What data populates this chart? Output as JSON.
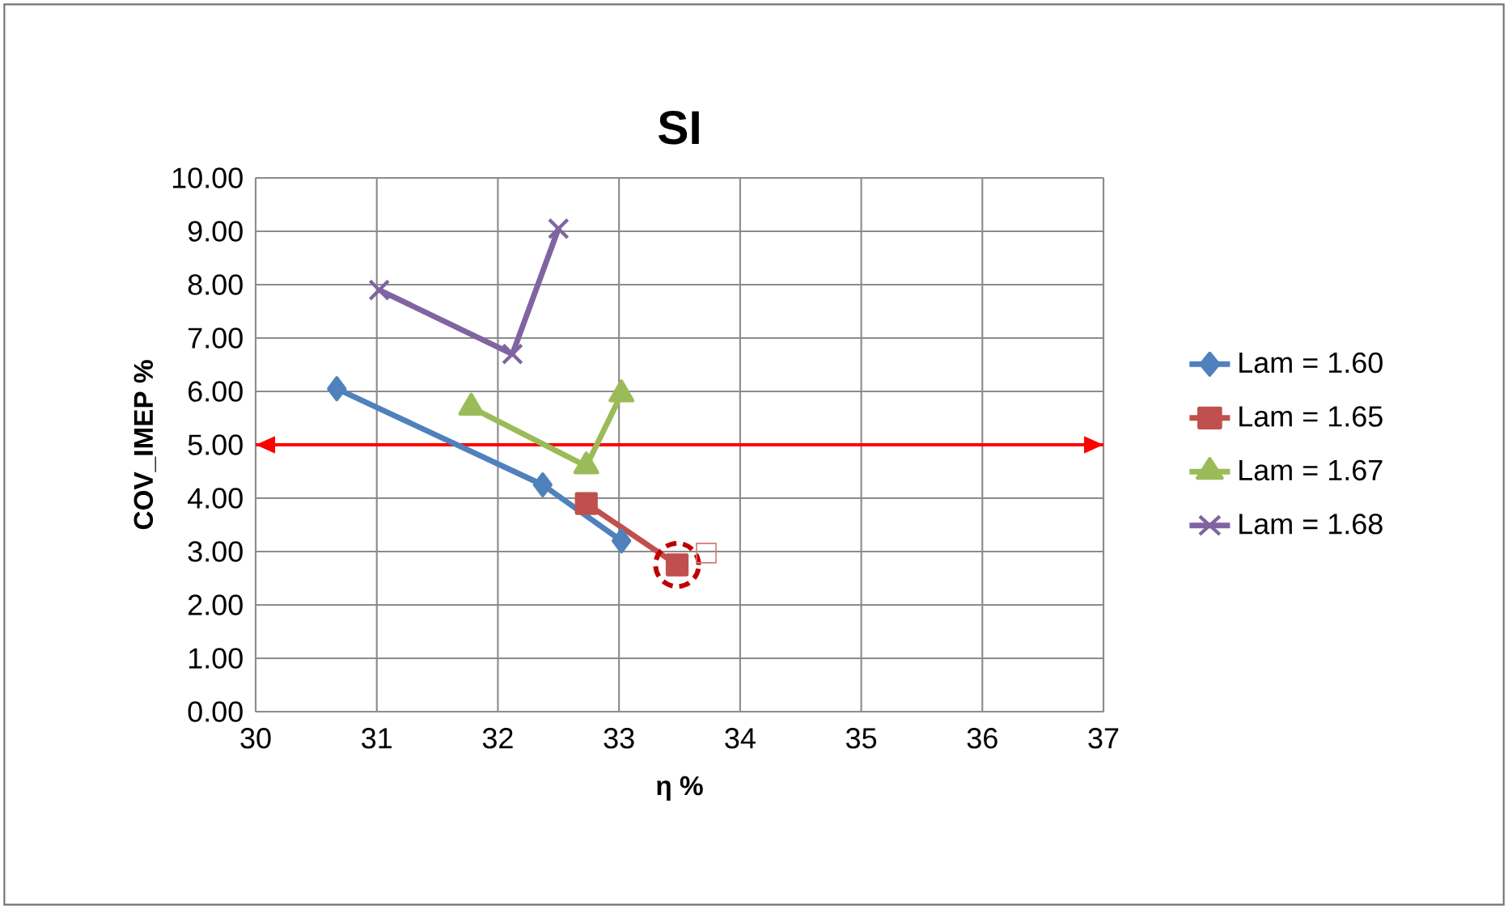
{
  "chart_data": {
    "type": "line",
    "title": "SI",
    "xlabel": "η %",
    "ylabel": "COV_IMEP %",
    "xlim": [
      30,
      37
    ],
    "xticks": [
      30,
      31,
      32,
      33,
      34,
      35,
      36,
      37
    ],
    "ylim": [
      0,
      10
    ],
    "yticks": [
      {
        "value": 0,
        "label": "0.00"
      },
      {
        "value": 1,
        "label": "1.00"
      },
      {
        "value": 2,
        "label": "2.00"
      },
      {
        "value": 3,
        "label": "3.00"
      },
      {
        "value": 4,
        "label": "4.00"
      },
      {
        "value": 5,
        "label": "5.00"
      },
      {
        "value": 6,
        "label": "6.00"
      },
      {
        "value": 7,
        "label": "7.00"
      },
      {
        "value": 8,
        "label": "8.00"
      },
      {
        "value": 9,
        "label": "9.00"
      },
      {
        "value": 10,
        "label": "10.00"
      }
    ],
    "grid": true,
    "legend": "right",
    "series": [
      {
        "name": "Lam = 1.60",
        "color": "#4f81bd",
        "marker": "diamond",
        "x": [
          30.67,
          32.37,
          33.02
        ],
        "values": [
          6.05,
          4.25,
          3.2
        ]
      },
      {
        "name": "Lam = 1.65",
        "color": "#c0504d",
        "marker": "square",
        "x": [
          32.73,
          33.48
        ],
        "values": [
          3.9,
          2.75
        ]
      },
      {
        "name": "Lam = 1.67",
        "color": "#9bbb59",
        "marker": "triangle",
        "x": [
          31.78,
          32.73,
          33.02
        ],
        "values": [
          5.7,
          4.6,
          5.95
        ]
      },
      {
        "name": "Lam = 1.68",
        "color": "#8064a2",
        "marker": "cross",
        "x": [
          31.02,
          32.12,
          32.5
        ],
        "values": [
          7.9,
          6.7,
          9.05
        ]
      }
    ],
    "ref_lines": [
      {
        "axis": "y",
        "value": 5,
        "color": "#ff0000",
        "line_style": "solid"
      }
    ]
  }
}
